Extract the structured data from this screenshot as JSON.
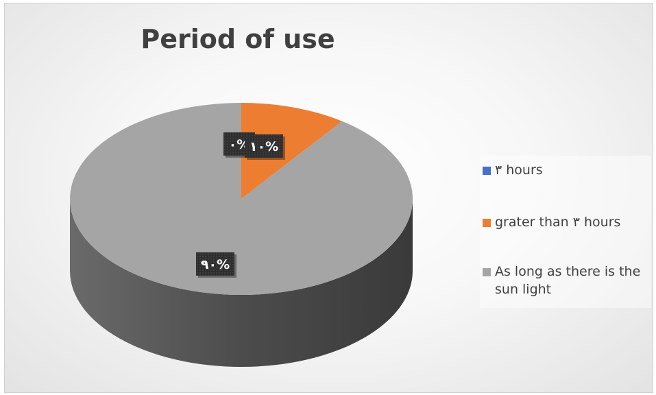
{
  "chart_data": {
    "type": "pie",
    "title": "Period of use",
    "categories": [
      "٣ hours",
      "grater than ٣ hours",
      "As long as there is the sun light"
    ],
    "values": [
      0,
      10,
      90
    ],
    "data_labels": [
      "٠%",
      "١٠%",
      "٩٠%"
    ],
    "colors": [
      "#4472C4",
      "#ED7D31",
      "#A5A5A5"
    ],
    "legend_position": "right",
    "style": "3d"
  }
}
